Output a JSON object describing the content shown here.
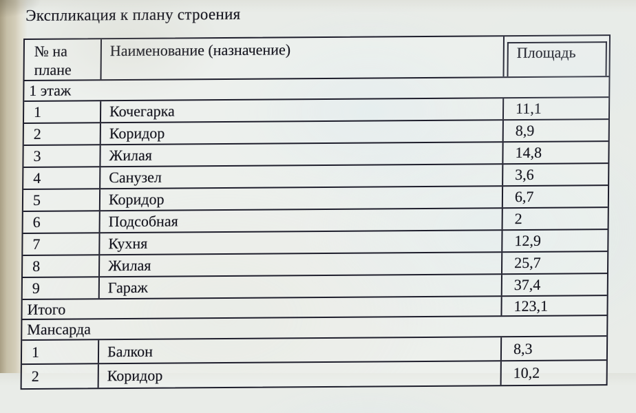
{
  "page": {
    "title": "Экспликация к плану строения"
  },
  "table": {
    "headers": {
      "col1": "№ на плане",
      "col2": "Наименование (назначение)",
      "col3": "Площадь"
    },
    "rows": [
      {
        "type": "section",
        "label": "1 этаж"
      },
      {
        "type": "data",
        "num": "1",
        "name": "Кочегарка",
        "area": "11,1"
      },
      {
        "type": "data",
        "num": "2",
        "name": "Коридор",
        "area": "8,9"
      },
      {
        "type": "data",
        "num": "3",
        "name": "Жилая",
        "area": "14,8"
      },
      {
        "type": "data",
        "num": "4",
        "name": "Санузел",
        "area": "3,6"
      },
      {
        "type": "data",
        "num": "5",
        "name": "Коридор",
        "area": "6,7"
      },
      {
        "type": "data",
        "num": "6",
        "name": "Подсобная",
        "area": "2"
      },
      {
        "type": "data",
        "num": "7",
        "name": "Кухня",
        "area": "12,9"
      },
      {
        "type": "data",
        "num": "8",
        "name": "Жилая",
        "area": "25,7"
      },
      {
        "type": "data",
        "num": "9",
        "name": "Гараж",
        "area": "37,4"
      },
      {
        "type": "total",
        "label": "Итого",
        "area": "123,1"
      },
      {
        "type": "section",
        "label": "Мансарда"
      },
      {
        "type": "data",
        "num": "1",
        "name": "Балкон",
        "area": "8,3"
      },
      {
        "type": "data",
        "num": "2",
        "name": "Коридор",
        "area": "10,2"
      }
    ],
    "colors": {
      "ink": "#1d1d2b",
      "paper": "#e9ece8",
      "edge_strip": "#c6bfa8"
    }
  }
}
